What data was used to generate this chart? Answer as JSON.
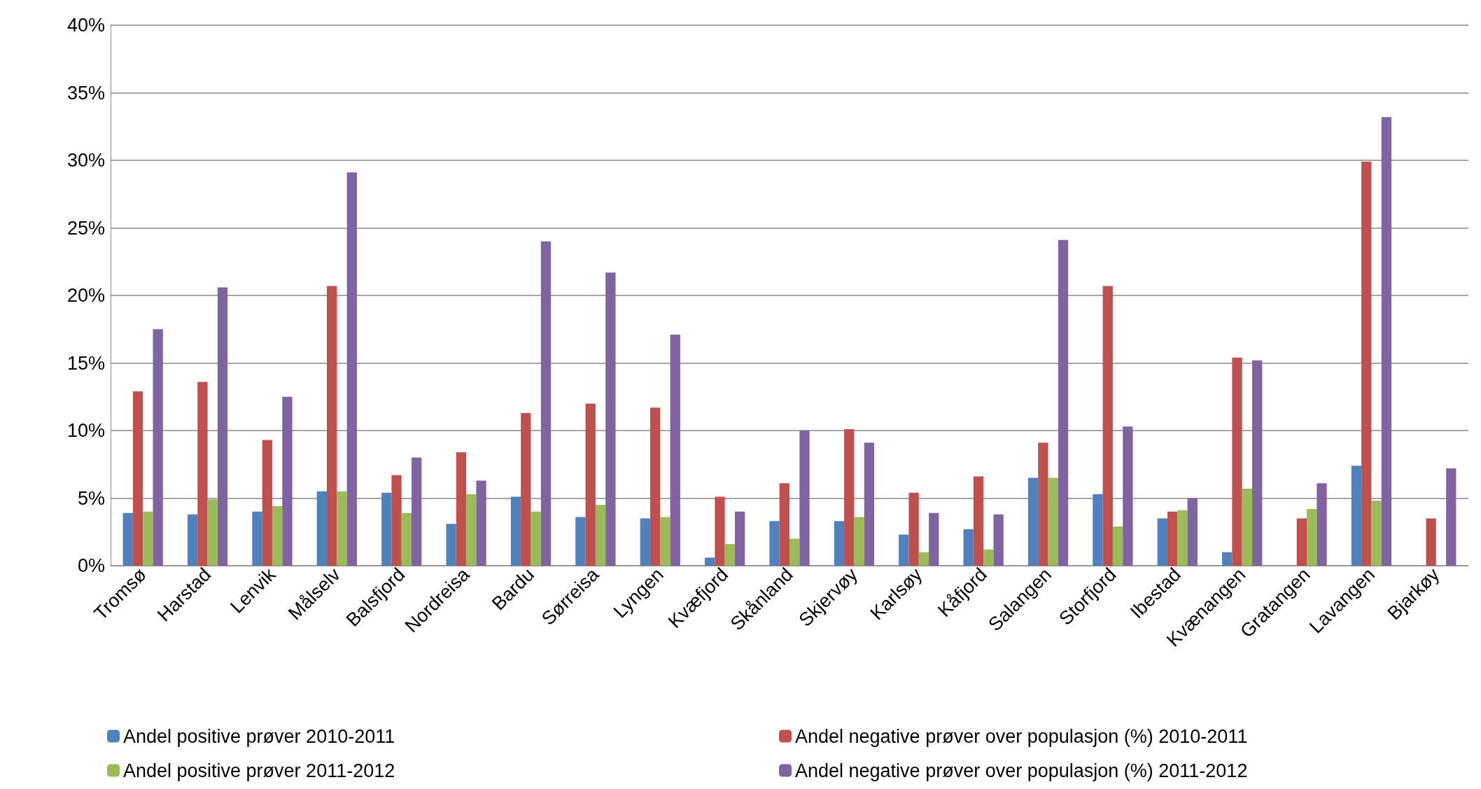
{
  "chart_data": {
    "type": "bar",
    "categories": [
      "Tromsø",
      "Harstad",
      "Lenvik",
      "Målselv",
      "Balsfjord",
      "Nordreisa",
      "Bardu",
      "Sørreisa",
      "Lyngen",
      "Kvæfjord",
      "Skånland",
      "Skjervøy",
      "Karlsøy",
      "Kåfjord",
      "Salangen",
      "Storfjord",
      "Ibestad",
      "Kvænangen",
      "Gratangen",
      "Lavangen",
      "Bjarkøy"
    ],
    "series": [
      {
        "name": "Andel positive prøver 2010-2011",
        "color": "#4f81bd",
        "values": [
          3.9,
          3.8,
          4.0,
          5.5,
          5.4,
          3.1,
          5.1,
          3.6,
          3.5,
          0.6,
          3.3,
          3.3,
          2.3,
          2.7,
          6.5,
          5.3,
          3.5,
          1.0,
          null,
          7.4,
          null
        ]
      },
      {
        "name": "Andel negative prøver over populasjon (%) 2010-2011",
        "color": "#c0504d",
        "values": [
          12.9,
          13.6,
          9.3,
          20.7,
          6.7,
          8.4,
          11.3,
          12.0,
          11.7,
          5.1,
          6.1,
          10.1,
          5.4,
          6.6,
          9.1,
          20.7,
          4.0,
          15.4,
          3.5,
          29.9,
          3.5
        ]
      },
      {
        "name": "Andel positive prøver 2011-2012",
        "color": "#9bbb59",
        "values": [
          4.0,
          4.9,
          4.4,
          5.5,
          3.9,
          5.3,
          4.0,
          4.5,
          3.6,
          1.6,
          2.0,
          3.6,
          1.0,
          1.2,
          6.5,
          2.9,
          4.1,
          5.7,
          4.2,
          4.8,
          null
        ]
      },
      {
        "name": "Andel negative prøver over populasjon (%) 2011-2012",
        "color": "#8064a2",
        "values": [
          17.5,
          20.6,
          12.5,
          29.1,
          8.0,
          6.3,
          24.0,
          21.7,
          17.1,
          4.0,
          10.0,
          9.1,
          3.9,
          3.8,
          24.1,
          10.3,
          5.0,
          15.2,
          6.1,
          33.2,
          7.2
        ]
      }
    ],
    "ylim": [
      0,
      40
    ],
    "yticks": [
      {
        "value": 0,
        "label": "0%"
      },
      {
        "value": 5,
        "label": "5%"
      },
      {
        "value": 10,
        "label": "10%"
      },
      {
        "value": 15,
        "label": "15%"
      },
      {
        "value": 20,
        "label": "20%"
      },
      {
        "value": 25,
        "label": "25%"
      },
      {
        "value": 30,
        "label": "30%"
      },
      {
        "value": 35,
        "label": "35%"
      },
      {
        "value": 40,
        "label": "40%"
      }
    ],
    "grid": "y",
    "legend": "bottom"
  }
}
